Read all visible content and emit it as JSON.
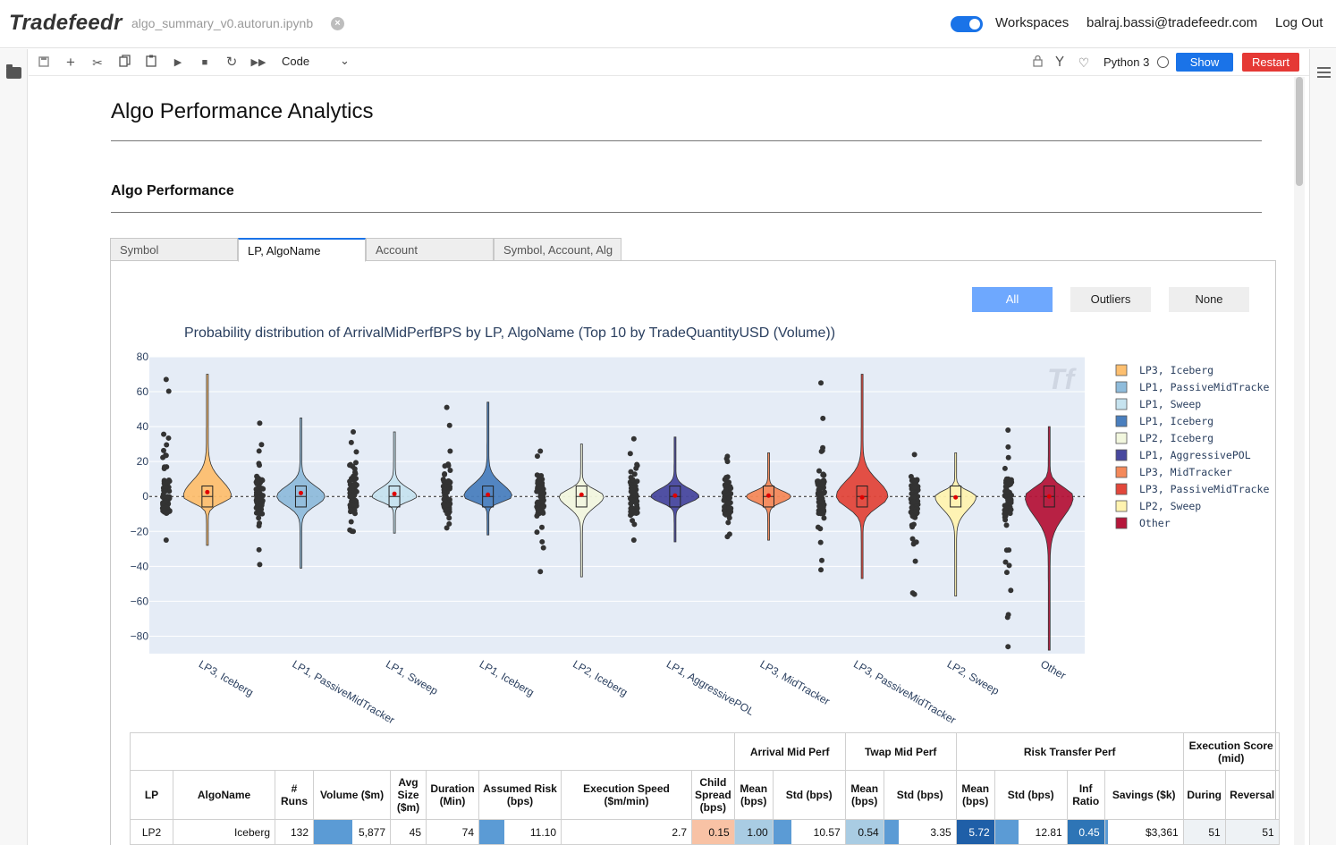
{
  "app": {
    "logo": "Tradefeedr",
    "notebook_name": "algo_summary_v0.autorun.ipynb",
    "workspaces_label": "Workspaces",
    "user_email": "balraj.bassi@tradefeedr.com",
    "logout_label": "Log Out"
  },
  "toolbar": {
    "cell_type": "Code",
    "kernel": "Python 3",
    "show_label": "Show",
    "restart_label": "Restart"
  },
  "content": {
    "title": "Algo Performance Analytics",
    "section": "Algo Performance",
    "tabs": [
      "Symbol",
      "LP, AlgoName",
      "Account",
      "Symbol, Account, Alg"
    ],
    "active_tab": "LP, AlgoName",
    "filter_buttons": [
      "All",
      "Outliers",
      "None"
    ],
    "active_filter": "All"
  },
  "chart_data": {
    "type": "violin",
    "title": "Probability distribution of ArrivalMidPerfBPS by LP, AlgoName (Top 10 by TradeQuantityUSD (Volume))",
    "watermark": "Tf",
    "ylim": [
      -90,
      80
    ],
    "yticks": [
      "80",
      "60",
      "40",
      "20",
      "0",
      "−20",
      "−40",
      "−60",
      "−80"
    ],
    "legend_position": "right",
    "categories": [
      "LP3, Iceberg",
      "LP1, PassiveMidTracker",
      "LP1, Sweep",
      "LP1, Iceberg",
      "LP2, Iceberg",
      "LP1, AggressivePOL",
      "LP3, MidTracker",
      "LP3, PassiveMidTracker",
      "LP2, Sweep",
      "Other"
    ],
    "colors": [
      "#fdbf6f",
      "#8fbcdb",
      "#c6e3ef",
      "#4a7fbe",
      "#f2f7de",
      "#48489e",
      "#f4895a",
      "#e2473b",
      "#fff3b0",
      "#b5163a"
    ],
    "series": [
      {
        "name": "LP3, Iceberg",
        "median": 0,
        "mean": 2.5,
        "min": -28,
        "max": 70,
        "outlier_min": -25,
        "outlier_max": 67
      },
      {
        "name": "LP1, PassiveMidTracker",
        "median": 0,
        "mean": 2,
        "min": -41,
        "max": 45,
        "outlier_min": -39,
        "outlier_max": 42
      },
      {
        "name": "LP1, Sweep",
        "median": 0,
        "mean": 1.5,
        "min": -21,
        "max": 37,
        "outlier_min": -20,
        "outlier_max": 37
      },
      {
        "name": "LP1, Iceberg",
        "median": 0,
        "mean": 1,
        "min": -22,
        "max": 54,
        "outlier_min": -18,
        "outlier_max": 51
      },
      {
        "name": "LP2, Iceberg",
        "median": 0,
        "mean": 1,
        "min": -46,
        "max": 30,
        "outlier_min": -43,
        "outlier_max": 26
      },
      {
        "name": "LP1, AggressivePOL",
        "median": 0,
        "mean": 0.5,
        "min": -26,
        "max": 34,
        "outlier_min": -25,
        "outlier_max": 33
      },
      {
        "name": "LP3, MidTracker",
        "median": 0,
        "mean": 0.5,
        "min": -25,
        "max": 25,
        "outlier_min": -23,
        "outlier_max": 23
      },
      {
        "name": "LP3, PassiveMidTracker",
        "median": 0,
        "mean": -0.5,
        "min": -47,
        "max": 70,
        "outlier_min": -42,
        "outlier_max": 65
      },
      {
        "name": "LP2, Sweep",
        "median": 0,
        "mean": -0.5,
        "min": -57,
        "max": 25,
        "outlier_min": -56,
        "outlier_max": 24
      },
      {
        "name": "Other",
        "median": 0,
        "mean": 0,
        "min": -88,
        "max": 40,
        "outlier_min": -86,
        "outlier_max": 38
      }
    ]
  },
  "table": {
    "groups": [
      "Arrival Mid Perf",
      "Twap Mid Perf",
      "Risk Transfer Perf",
      "Execution Score (mid)"
    ],
    "headers": [
      "LP",
      "AlgoName",
      "# Runs",
      "Volume ($m)",
      "Avg Size ($m)",
      "Duration (Min)",
      "Assumed Risk (bps)",
      "Execution Speed ($m/min)",
      "Child Spread (bps)",
      "Mean (bps)",
      "Std (bps)",
      "Mean (bps)",
      "Std (bps)",
      "Mean (bps)",
      "Std (bps)",
      "Inf Ratio",
      "Savings ($k)",
      "During",
      "Reversal"
    ],
    "rows": [
      {
        "lp": "LP2",
        "algo": "Iceberg",
        "runs": "132",
        "volume": "5,877",
        "avg_size": "45",
        "duration": "74",
        "assumed_risk": "11.10",
        "speed": "2.7",
        "child_spread": "0.15",
        "arr_mean": "1.00",
        "arr_std": "10.57",
        "twap_mean": "0.54",
        "twap_std": "3.35",
        "rt_mean": "5.72",
        "rt_std": "12.81",
        "inf_ratio": "0.45",
        "savings": "$3,361",
        "during": "51",
        "reversal": "51"
      }
    ]
  }
}
